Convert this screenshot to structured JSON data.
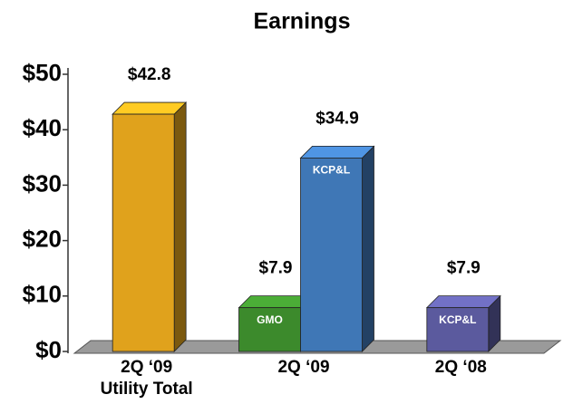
{
  "chart_data": {
    "type": "bar3d",
    "title": "Earnings",
    "categories": [
      [
        "2Q ‘09",
        "Utility Total"
      ],
      [
        "2Q ‘09"
      ],
      [
        "2Q ‘08"
      ]
    ],
    "series": [
      {
        "values": [
          42.8,
          null,
          null
        ],
        "value_labels": [
          "$42.8",
          null,
          null
        ],
        "colors": [
          "#e0a21c",
          null,
          null
        ]
      },
      {
        "name": "GMO",
        "values": [
          null,
          7.9,
          null
        ],
        "value_labels": [
          null,
          "$7.9",
          null
        ],
        "colors": [
          null,
          "#3c8a2c",
          null
        ]
      },
      {
        "name": "KCP&L",
        "values": [
          null,
          34.9,
          7.9
        ],
        "value_labels": [
          null,
          "$34.9",
          "$7.9"
        ],
        "colors": [
          null,
          "#3f77b6",
          "#5b5a9e"
        ]
      }
    ],
    "ylim": [
      0,
      50
    ],
    "yticks": [
      {
        "value": 0,
        "label": "$0"
      },
      {
        "value": 10,
        "label": "$10"
      },
      {
        "value": 20,
        "label": "$20"
      },
      {
        "value": 30,
        "label": "$30"
      },
      {
        "value": 40,
        "label": "$40"
      },
      {
        "value": 50,
        "label": "$50"
      }
    ]
  }
}
